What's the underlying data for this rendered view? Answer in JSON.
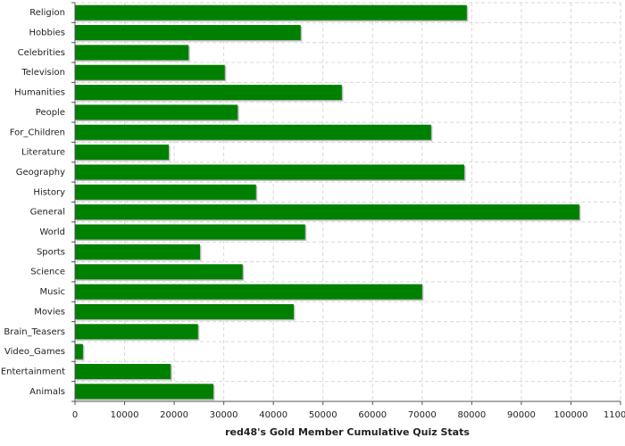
{
  "chart_data": {
    "type": "hbar",
    "xlabel": "red48's Gold Member Cumulative Quiz Stats",
    "categories": [
      "Religion",
      "Hobbies",
      "Celebrities",
      "Television",
      "Humanities",
      "People",
      "For_Children",
      "Literature",
      "Geography",
      "History",
      "General",
      "World",
      "Sports",
      "Science",
      "Music",
      "Movies",
      "Brain_Teasers",
      "Video_Games",
      "Entertainment",
      "Animals"
    ],
    "values": [
      79000,
      45500,
      22900,
      30200,
      53800,
      32800,
      71800,
      18900,
      78500,
      36500,
      101700,
      46400,
      25200,
      33800,
      70000,
      44100,
      24800,
      1600,
      19300,
      27900
    ],
    "color": "#008000",
    "xlim": [
      0,
      110000
    ],
    "xticks": [
      0,
      10000,
      20000,
      30000,
      40000,
      50000,
      60000,
      70000,
      80000,
      90000,
      100000,
      110000
    ],
    "grid": true
  }
}
